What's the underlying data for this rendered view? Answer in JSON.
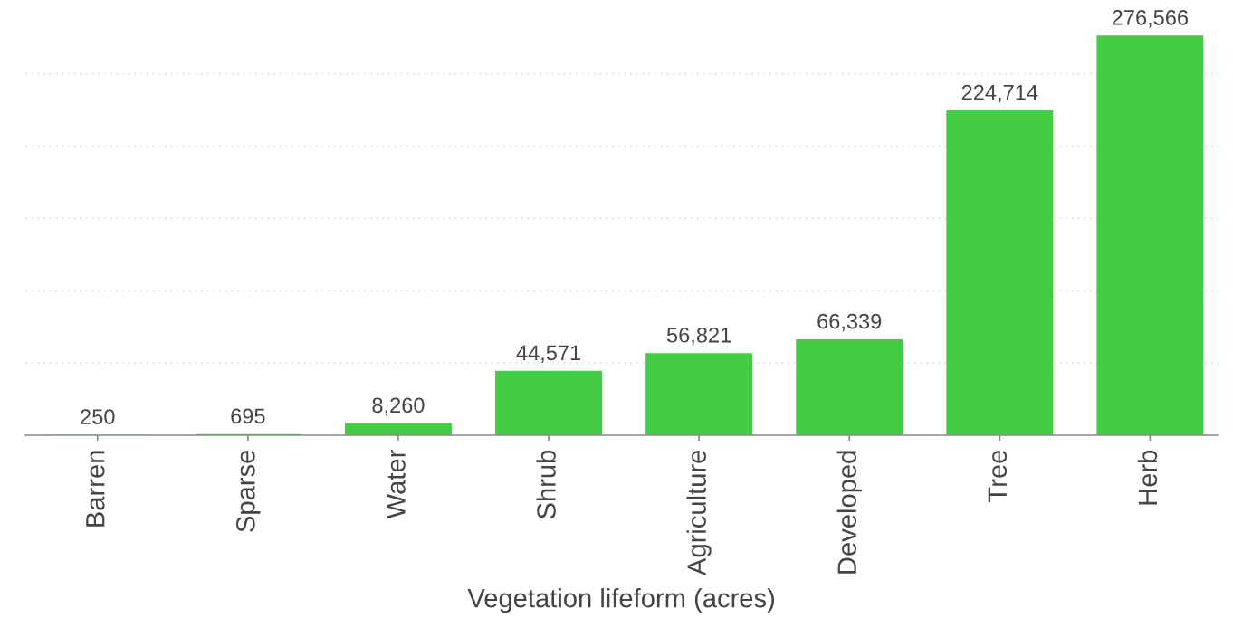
{
  "chart_data": {
    "type": "bar",
    "xlabel": "Vegetation lifeform (acres)",
    "categories": [
      "Barren",
      "Sparse",
      "Water",
      "Shrub",
      "Agriculture",
      "Developed",
      "Tree",
      "Herb"
    ],
    "values": [
      250,
      695,
      8260,
      44571,
      56821,
      66339,
      224714,
      276566
    ],
    "value_labels": [
      "250",
      "695",
      "8,260",
      "44,571",
      "56,821",
      "66,339",
      "224,714",
      "276,566"
    ],
    "color": "#45cc45",
    "yticks": [
      {
        "value": 50000,
        "label": null
      },
      {
        "value": 100000,
        "label": null
      },
      {
        "value": 150000,
        "label": null
      },
      {
        "value": 200000,
        "label": null
      },
      {
        "value": 250000,
        "label": null
      }
    ],
    "grid": "y",
    "tick_labels": "x"
  }
}
